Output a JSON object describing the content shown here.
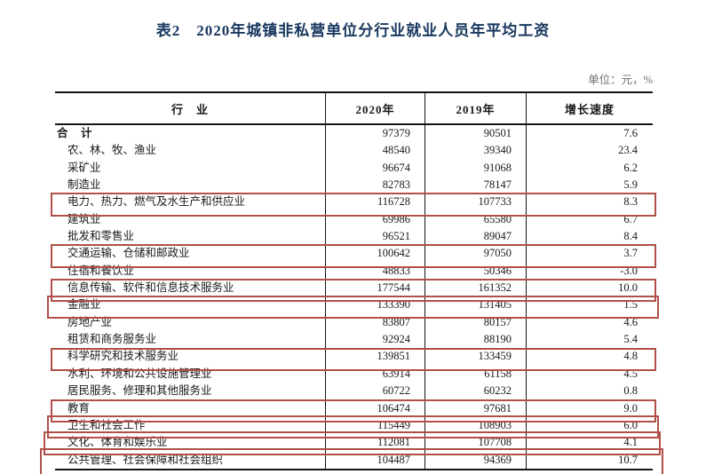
{
  "page": {
    "title": "表2　2020年城镇非私营单位分行业就业人员年平均工资",
    "unit_note": "单位：元，%"
  },
  "table": {
    "columns": [
      "行　业",
      "2020年",
      "2019年",
      "增长速度"
    ],
    "rows": [
      {
        "industry": "合　计",
        "y2020": "97379",
        "y2019": "90501",
        "growth": "7.6",
        "total": true
      },
      {
        "industry": "农、林、牧、渔业",
        "y2020": "48540",
        "y2019": "39340",
        "growth": "23.4"
      },
      {
        "industry": "采矿业",
        "y2020": "96674",
        "y2019": "91068",
        "growth": "6.2"
      },
      {
        "industry": "制造业",
        "y2020": "82783",
        "y2019": "78147",
        "growth": "5.9"
      },
      {
        "industry": "电力、热力、燃气及水生产和供应业",
        "y2020": "116728",
        "y2019": "107733",
        "growth": "8.3",
        "highlighted": true
      },
      {
        "industry": "建筑业",
        "y2020": "69986",
        "y2019": "65580",
        "growth": "6.7"
      },
      {
        "industry": "批发和零售业",
        "y2020": "96521",
        "y2019": "89047",
        "growth": "8.4"
      },
      {
        "industry": "交通运输、仓储和邮政业",
        "y2020": "100642",
        "y2019": "97050",
        "growth": "3.7",
        "highlighted": true
      },
      {
        "industry": "住宿和餐饮业",
        "y2020": "48833",
        "y2019": "50346",
        "growth": "-3.0"
      },
      {
        "industry": "信息传输、软件和信息技术服务业",
        "y2020": "177544",
        "y2019": "161352",
        "growth": "10.0",
        "highlighted": true
      },
      {
        "industry": "金融业",
        "y2020": "133390",
        "y2019": "131405",
        "growth": "1.5",
        "highlighted": true
      },
      {
        "industry": "房地产业",
        "y2020": "83807",
        "y2019": "80157",
        "growth": "4.6"
      },
      {
        "industry": "租赁和商务服务业",
        "y2020": "92924",
        "y2019": "88190",
        "growth": "5.4"
      },
      {
        "industry": "科学研究和技术服务业",
        "y2020": "139851",
        "y2019": "133459",
        "growth": "4.8",
        "highlighted": true
      },
      {
        "industry": "水利、环境和公共设施管理业",
        "y2020": "63914",
        "y2019": "61158",
        "growth": "4.5"
      },
      {
        "industry": "居民服务、修理和其他服务业",
        "y2020": "60722",
        "y2019": "60232",
        "growth": "0.8"
      },
      {
        "industry": "教育",
        "y2020": "106474",
        "y2019": "97681",
        "growth": "9.0",
        "highlighted": true
      },
      {
        "industry": "卫生和社会工作",
        "y2020": "115449",
        "y2019": "108903",
        "growth": "6.0",
        "highlighted": true
      },
      {
        "industry": "文化、体育和娱乐业",
        "y2020": "112081",
        "y2019": "107708",
        "growth": "4.1",
        "highlighted": true
      },
      {
        "industry": "公共管理、社会保障和社会组织",
        "y2020": "104487",
        "y2019": "94369",
        "growth": "10.7",
        "highlighted": true
      }
    ]
  },
  "annotation": {
    "highlight_color": "#b05048"
  }
}
